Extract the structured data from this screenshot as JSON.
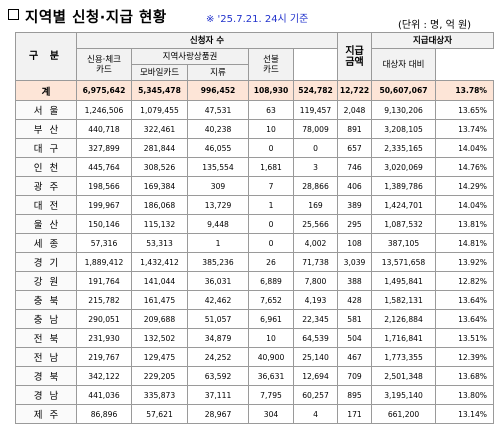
{
  "header": {
    "title": "지역별 신청·지급 현황",
    "note": "※ '25.7.21. 24시 기준",
    "unit": "(단위 : 명, 억 원)"
  },
  "columns": {
    "region": "구 분",
    "applicants": "신청자 수",
    "card": "신용·체크\n카드",
    "local_gift": "지역사랑상품권",
    "mobile": "모바일카드",
    "paper": "지류",
    "prepaid": "선불\n카드",
    "amount": "지급\n금액",
    "target": "지급대상자",
    "target_ratio": "대상자 대비"
  },
  "total": {
    "region": "계",
    "values": [
      "6,975,642",
      "5,345,478",
      "996,452",
      "108,930",
      "524,782",
      "12,722",
      "50,607,067",
      "13.78%"
    ]
  },
  "rows": [
    {
      "region": "서울",
      "values": [
        "1,246,506",
        "1,079,455",
        "47,531",
        "63",
        "119,457",
        "2,048",
        "9,130,206",
        "13.65%"
      ]
    },
    {
      "region": "부산",
      "values": [
        "440,718",
        "322,461",
        "40,238",
        "10",
        "78,009",
        "891",
        "3,208,105",
        "13.74%"
      ]
    },
    {
      "region": "대구",
      "values": [
        "327,899",
        "281,844",
        "46,055",
        "0",
        "0",
        "657",
        "2,335,165",
        "14.04%"
      ]
    },
    {
      "region": "인천",
      "values": [
        "445,764",
        "308,526",
        "135,554",
        "1,681",
        "3",
        "746",
        "3,020,069",
        "14.76%"
      ]
    },
    {
      "region": "광주",
      "values": [
        "198,566",
        "169,384",
        "309",
        "7",
        "28,866",
        "406",
        "1,389,786",
        "14.29%"
      ]
    },
    {
      "region": "대전",
      "values": [
        "199,967",
        "186,068",
        "13,729",
        "1",
        "169",
        "389",
        "1,424,701",
        "14.04%"
      ]
    },
    {
      "region": "울산",
      "values": [
        "150,146",
        "115,132",
        "9,448",
        "0",
        "25,566",
        "295",
        "1,087,532",
        "13.81%"
      ]
    },
    {
      "region": "세종",
      "values": [
        "57,316",
        "53,313",
        "1",
        "0",
        "4,002",
        "108",
        "387,105",
        "14.81%"
      ]
    },
    {
      "region": "경기",
      "values": [
        "1,889,412",
        "1,432,412",
        "385,236",
        "26",
        "71,738",
        "3,039",
        "13,571,658",
        "13.92%"
      ]
    },
    {
      "region": "강원",
      "values": [
        "191,764",
        "141,044",
        "36,031",
        "6,889",
        "7,800",
        "388",
        "1,495,841",
        "12.82%"
      ]
    },
    {
      "region": "충북",
      "values": [
        "215,782",
        "161,475",
        "42,462",
        "7,652",
        "4,193",
        "428",
        "1,582,131",
        "13.64%"
      ]
    },
    {
      "region": "충남",
      "values": [
        "290,051",
        "209,688",
        "51,057",
        "6,961",
        "22,345",
        "581",
        "2,126,884",
        "13.64%"
      ]
    },
    {
      "region": "전북",
      "values": [
        "231,930",
        "132,502",
        "34,879",
        "10",
        "64,539",
        "504",
        "1,716,841",
        "13.51%"
      ]
    },
    {
      "region": "전남",
      "values": [
        "219,767",
        "129,475",
        "24,252",
        "40,900",
        "25,140",
        "467",
        "1,773,355",
        "12.39%"
      ]
    },
    {
      "region": "경북",
      "values": [
        "342,122",
        "229,205",
        "63,592",
        "36,631",
        "12,694",
        "709",
        "2,501,348",
        "13.68%"
      ]
    },
    {
      "region": "경남",
      "values": [
        "441,036",
        "335,873",
        "37,111",
        "7,795",
        "60,257",
        "895",
        "3,195,140",
        "13.80%"
      ]
    },
    {
      "region": "제주",
      "values": [
        "86,896",
        "57,621",
        "28,967",
        "304",
        "4",
        "171",
        "661,200",
        "13.14%"
      ]
    }
  ]
}
